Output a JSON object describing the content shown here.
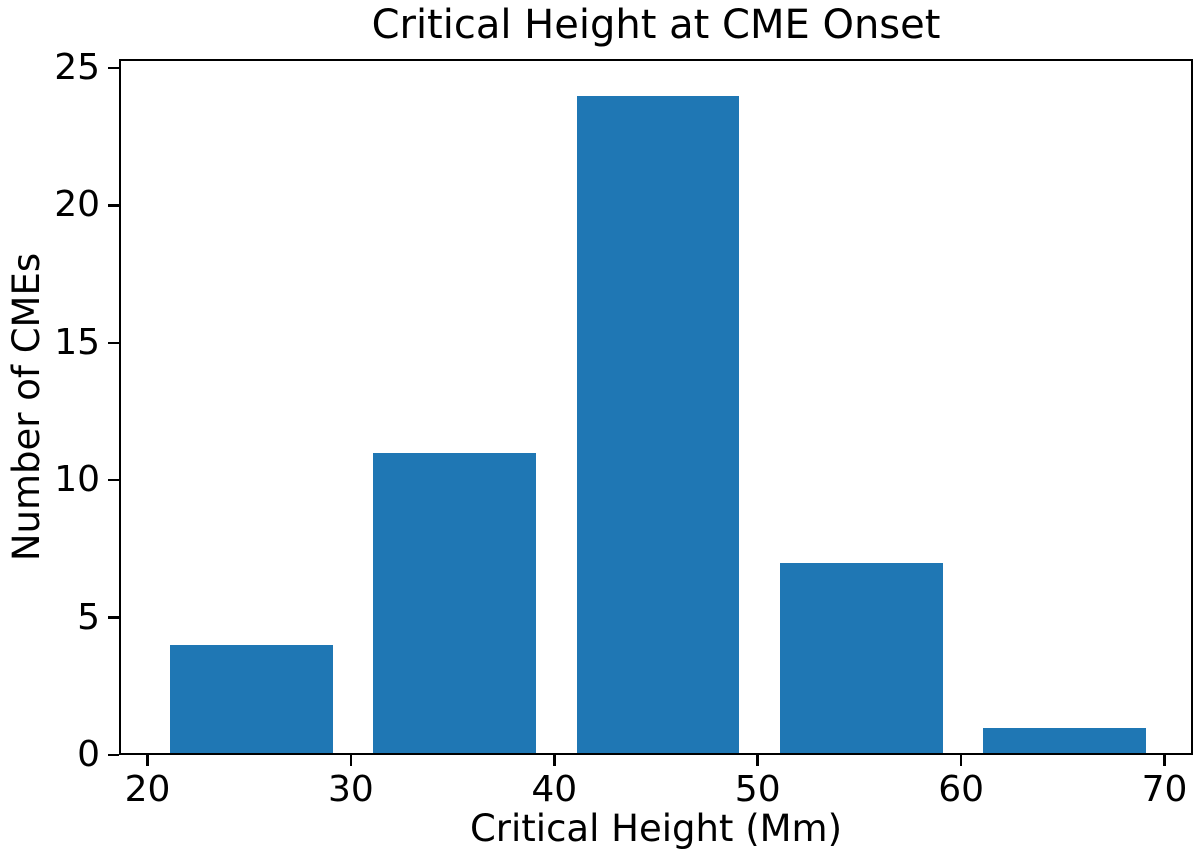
{
  "chart_data": {
    "type": "bar",
    "title": "Critical Height at CME Onset",
    "xlabel": "Critical Height (Mm)",
    "ylabel": "Number of CMEs",
    "bin_centers": [
      25.1,
      35.1,
      45.1,
      55.1,
      65.1
    ],
    "values": [
      4,
      11,
      24,
      7,
      1
    ],
    "bar_width": 8.0,
    "xticks": [
      20,
      30,
      40,
      50,
      60,
      70
    ],
    "yticks": [
      0,
      5,
      10,
      15,
      20,
      25
    ],
    "xlim": [
      18.6,
      71.4
    ],
    "ylim": [
      0,
      25.33
    ],
    "bar_color": "#1f77b4",
    "axis_color": "#000000",
    "background_color": "#ffffff",
    "grid": false,
    "legend": null
  }
}
